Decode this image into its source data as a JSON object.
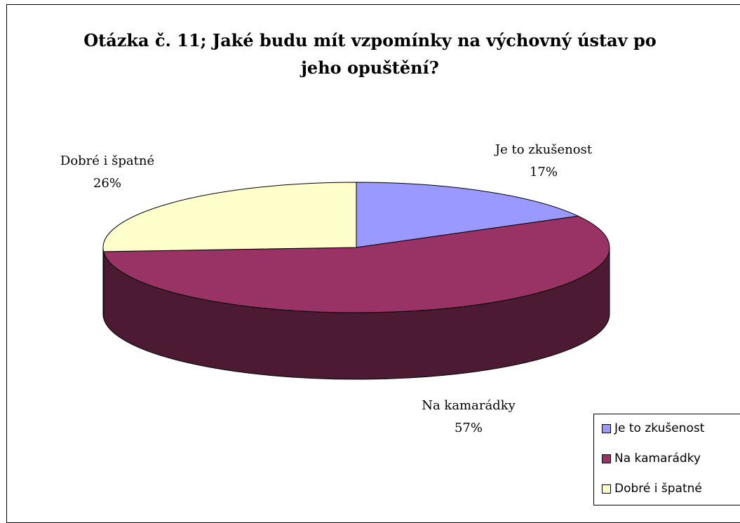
{
  "chart_data": {
    "type": "pie",
    "title": "Otázka č. 11; Jaké budu mít vzpomínky na výchovný ústav po jeho opuštění?",
    "title_lines": [
      "Otázka č. 11; Jaké budu mít vzpomínky na výchovný ústav po",
      "jeho opuštění?"
    ],
    "style": "3d-pie",
    "legend_position": "bottom-right",
    "slices": [
      {
        "label": "Je to zkušenost",
        "value": 17,
        "display": "17%",
        "color": "#9999ff",
        "side_color": "#4d4d80"
      },
      {
        "label": "Na kamarádky",
        "value": 57,
        "display": "57%",
        "color": "#993366",
        "side_color": "#4d1a33"
      },
      {
        "label": "Dobré i špatné",
        "value": 26,
        "display": "26%",
        "color": "#ffffcc",
        "side_color": "#808066"
      }
    ]
  }
}
